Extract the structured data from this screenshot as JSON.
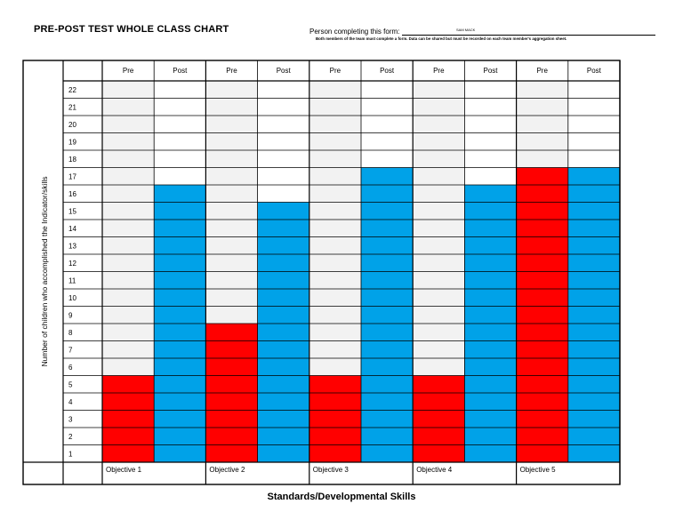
{
  "header": {
    "title": "PRE-POST TEST WHOLE CLASS CHART",
    "person_label": "Person completing this form:",
    "person_name": "SAM MACK",
    "note": "Both members of the team must complete a form.  Data can be shared but must be recorded on each team member's aggregation sheet."
  },
  "chart_data": {
    "type": "bar",
    "title": "PRE-POST TEST WHOLE CLASS CHART",
    "xlabel": "Standards/Developmental Skills",
    "ylabel": "Number of children who accomplished the Indicator/skills",
    "ylim": [
      0,
      22
    ],
    "y_ticks": [
      1,
      2,
      3,
      4,
      5,
      6,
      7,
      8,
      9,
      10,
      11,
      12,
      13,
      14,
      15,
      16,
      17,
      18,
      19,
      20,
      21,
      22
    ],
    "categories": [
      "Objective 1",
      "Objective 2",
      "Objective 3",
      "Objective 4",
      "Objective 5"
    ],
    "column_headers": [
      "Pre",
      "Post"
    ],
    "series": [
      {
        "name": "Pre",
        "color": "#ff0000",
        "values": [
          5,
          8,
          5,
          5,
          17
        ]
      },
      {
        "name": "Post",
        "color": "#00a2e8",
        "values": [
          16,
          15,
          17,
          16,
          17
        ]
      }
    ],
    "empty_cell_color": "#f2f2f2",
    "grid": true
  }
}
